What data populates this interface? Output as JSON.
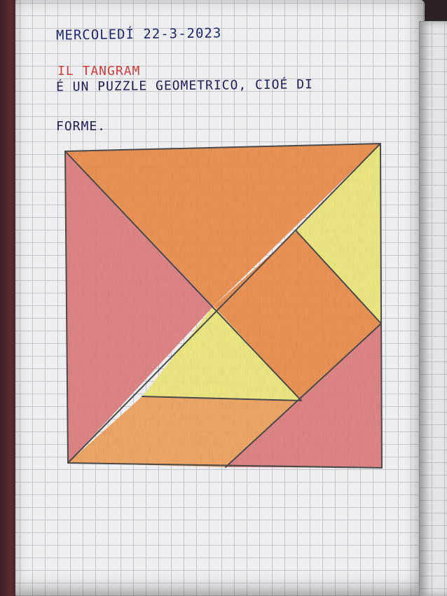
{
  "heading": {
    "date_text": "MERCOLEDÍ 22-3-2023",
    "title_text": "IL TANGRAM",
    "definition_line1": "É UN PUZZLE GEOMETRICO, CIOÉ DI",
    "definition_line2": "FORME."
  },
  "colors": {
    "handwriting_blue": "#1e2a6e",
    "title_red": "#d23b3b",
    "orange_pencil": "#ef8f4a",
    "yellow_pencil": "#f1ec7c",
    "red_pencil": "#e27f80",
    "light_orange_pencil": "#f2a45e",
    "pencil_outline": "#4a4a4a"
  },
  "tangram_pieces": [
    {
      "name": "large-triangle-top",
      "fill": "orange_pencil"
    },
    {
      "name": "large-triangle-left",
      "fill": "red_pencil"
    },
    {
      "name": "small-triangle-right",
      "fill": "yellow_pencil"
    },
    {
      "name": "square-center",
      "fill": "orange_pencil"
    },
    {
      "name": "small-triangle-center",
      "fill": "yellow_pencil"
    },
    {
      "name": "parallelogram-bottom",
      "fill": "light_orange_pencil"
    },
    {
      "name": "medium-triangle-bottom-right",
      "fill": "red_pencil"
    }
  ]
}
